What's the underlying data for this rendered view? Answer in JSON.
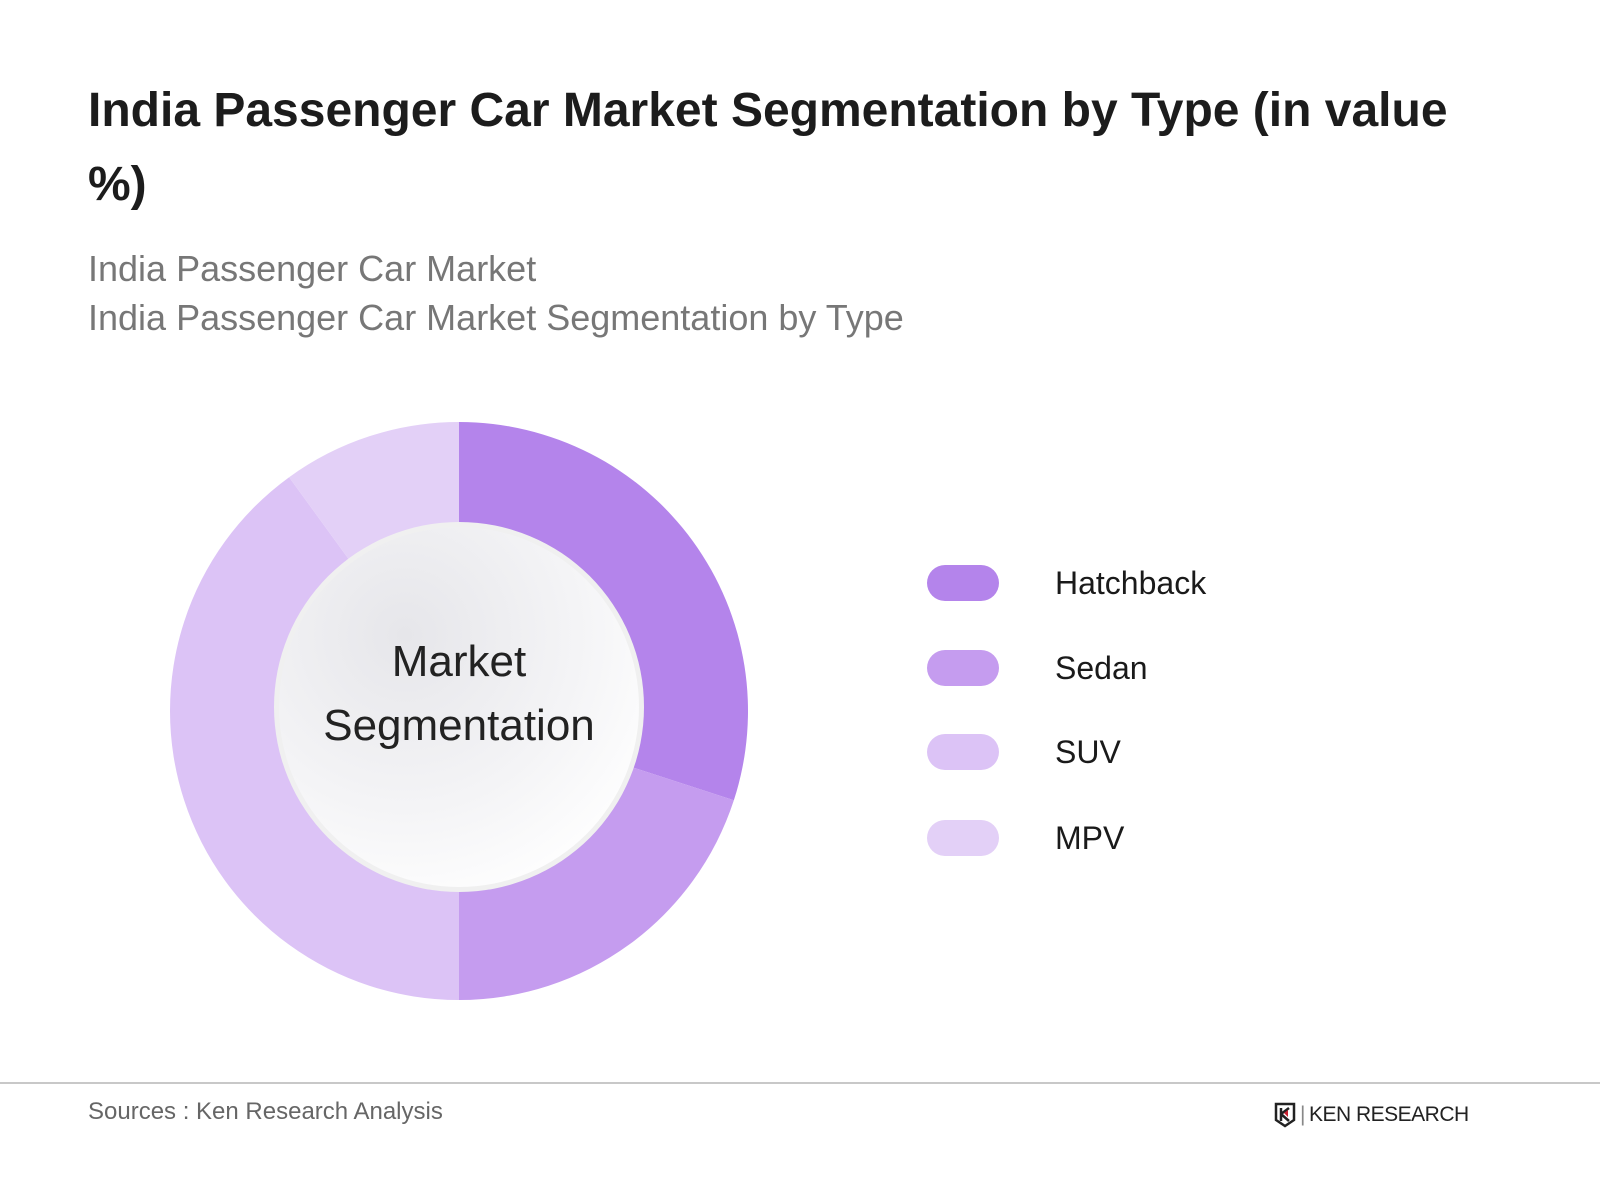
{
  "title": "India Passenger Car Market Segmentation by Type (in value %)",
  "subtitle_1": "India Passenger Car Market",
  "subtitle_2": "India Passenger Car Market Segmentation by Type",
  "center_label_1": "Market",
  "center_label_2": "Segmentation",
  "source": "Sources : Ken Research Analysis",
  "logo_text": "KEN RESEARCH",
  "chart_data": {
    "type": "pie",
    "variant": "donut",
    "title": "India Passenger Car Market Segmentation by Type (in value %)",
    "categories": [
      "Hatchback",
      "Sedan",
      "SUV",
      "MPV"
    ],
    "values": [
      30,
      20,
      40,
      10
    ],
    "colors": [
      "#b484eb",
      "#c59cef",
      "#dcc3f6",
      "#e3d0f7"
    ],
    "legend_position": "right",
    "data_labels": false
  }
}
